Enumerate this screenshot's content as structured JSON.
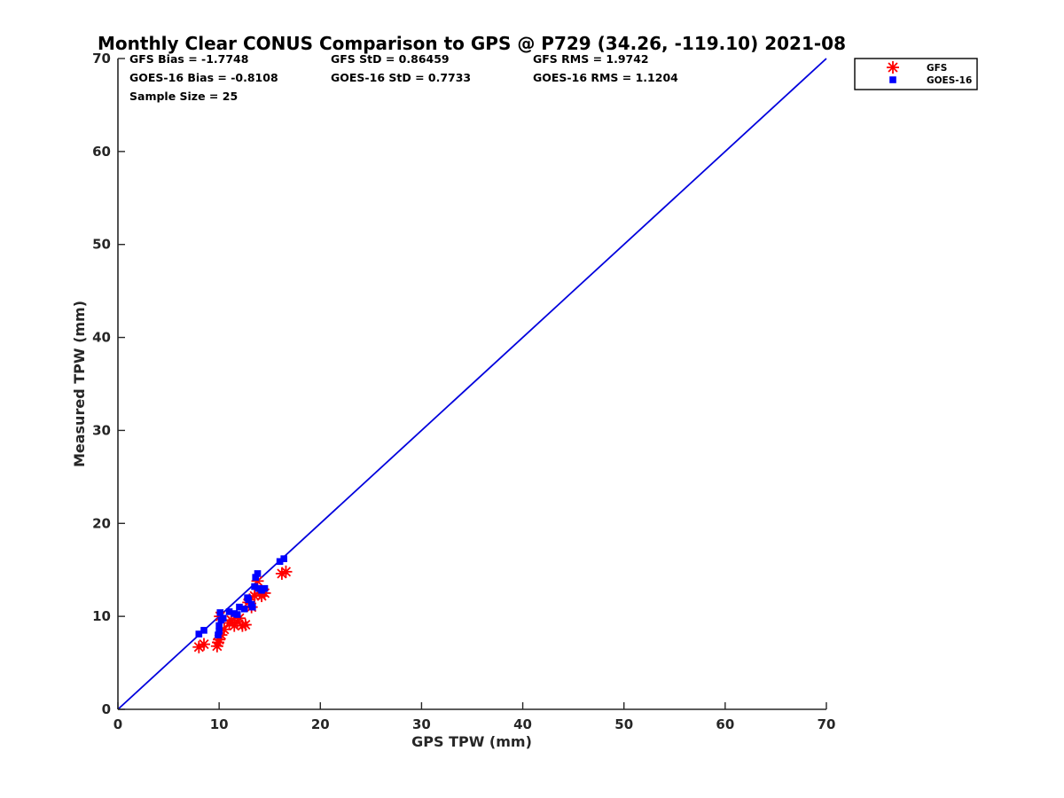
{
  "chart_data": {
    "type": "scatter",
    "title": "Monthly Clear CONUS Comparison to GPS @ P729 (34.26, -119.10) 2021-08",
    "xlabel": "GPS TPW (mm)",
    "ylabel": "Measured TPW (mm)",
    "xlim": [
      0,
      70
    ],
    "ylim": [
      0,
      70
    ],
    "xticks": [
      0,
      10,
      20,
      30,
      40,
      50,
      60,
      70
    ],
    "yticks": [
      0,
      10,
      20,
      30,
      40,
      50,
      60,
      70
    ],
    "grid": false,
    "legend_position": "outside-top-right",
    "stats": [
      "GFS Bias = -1.7748",
      "GFS StD = 0.86459",
      "GFS RMS = 1.9742",
      "GOES-16 Bias = -0.8108",
      "GOES-16 StD = 0.7733",
      "GOES-16 RMS = 1.1204",
      "Sample Size = 25"
    ],
    "reference_line": {
      "x": [
        0,
        70
      ],
      "y": [
        0,
        70
      ],
      "color": "#0000dd"
    },
    "series": [
      {
        "name": "GFS",
        "marker": "asterisk",
        "color": "#ff0000",
        "x": [
          8.0,
          8.5,
          9.8,
          10.0,
          10.2,
          10.5,
          11.0,
          11.5,
          11.8,
          12.0,
          12.3,
          12.6,
          12.9,
          13.2,
          13.5,
          13.8,
          14.0,
          14.2,
          14.5,
          10.1,
          11.2,
          13.0,
          16.2,
          16.6,
          9.9
        ],
        "y": [
          6.7,
          7.0,
          6.8,
          7.5,
          8.0,
          8.6,
          9.3,
          9.0,
          9.4,
          9.8,
          9.0,
          9.1,
          11.5,
          11.0,
          12.2,
          13.8,
          12.5,
          12.2,
          12.5,
          10.0,
          9.6,
          11.8,
          14.6,
          14.8,
          7.2
        ]
      },
      {
        "name": "GOES-16",
        "marker": "square",
        "color": "#0000ff",
        "x": [
          8.0,
          8.5,
          9.9,
          10.0,
          10.1,
          10.2,
          10.4,
          11.5,
          11.8,
          12.0,
          12.5,
          12.9,
          13.2,
          13.5,
          13.6,
          13.8,
          13.9,
          14.2,
          14.5,
          16.0,
          16.4,
          10.0,
          11.0,
          12.8,
          13.3
        ],
        "y": [
          8.1,
          8.5,
          8.0,
          9.0,
          10.4,
          9.6,
          9.8,
          10.3,
          10.2,
          11.0,
          10.8,
          11.8,
          11.3,
          13.2,
          14.2,
          14.6,
          13.0,
          12.8,
          13.0,
          15.9,
          16.2,
          8.4,
          10.5,
          12.0,
          11.0
        ]
      }
    ]
  }
}
